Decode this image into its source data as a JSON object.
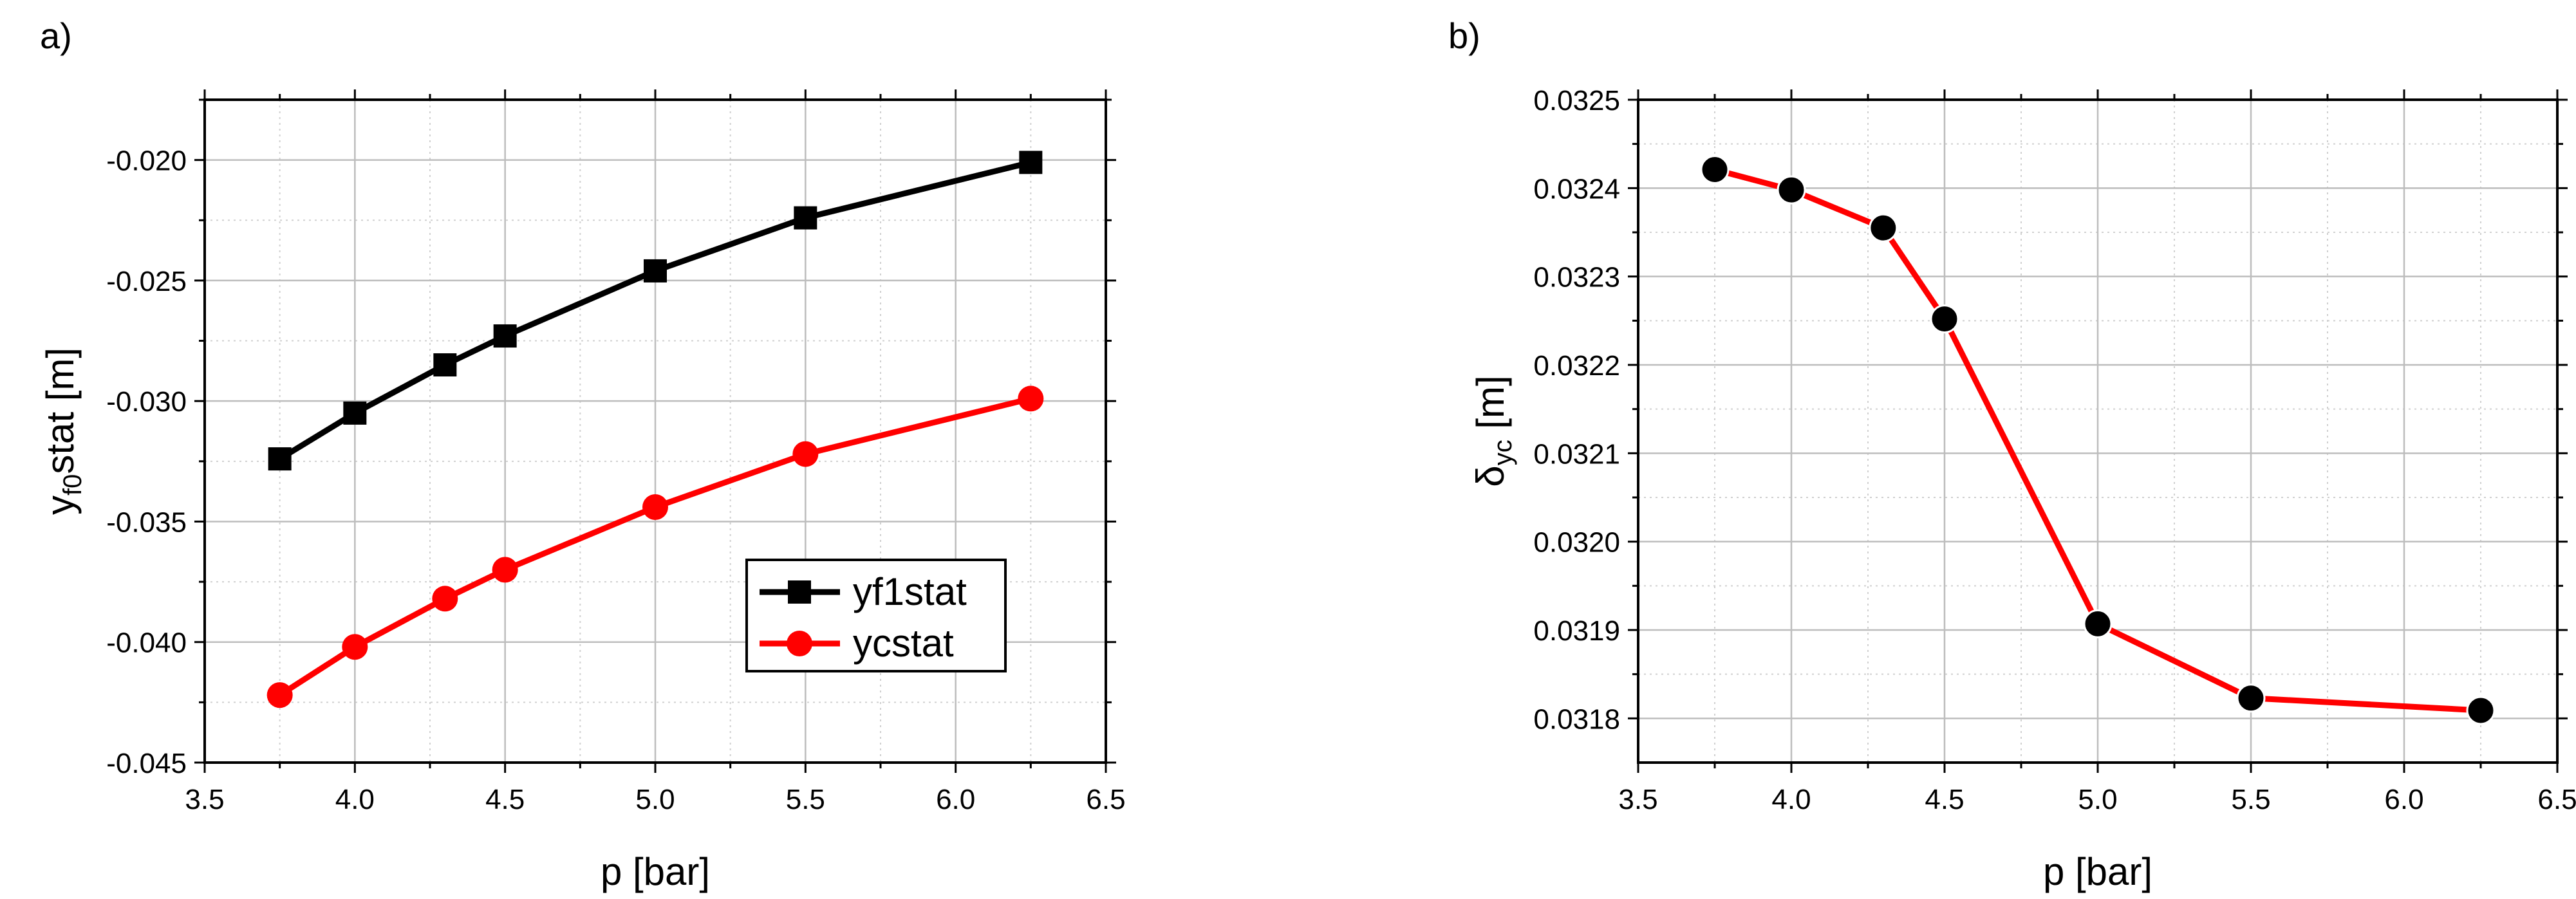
{
  "chart_data": [
    {
      "type": "line",
      "panel_label": "a)",
      "title": "",
      "xlabel": "p  [bar]",
      "ylabel": {
        "base": "y",
        "sub": "f0",
        "rest": "stat  [m]"
      },
      "xlim": [
        3.5,
        6.5
      ],
      "ylim": [
        -0.045,
        -0.0175
      ],
      "xticks": [
        3.5,
        4.0,
        4.5,
        5.0,
        5.5,
        6.0,
        6.5
      ],
      "xtick_labels": [
        "3.5",
        "4.0",
        "4.5",
        "5.0",
        "5.5",
        "6.0",
        "6.5"
      ],
      "yticks": [
        -0.045,
        -0.04,
        -0.035,
        -0.03,
        -0.025,
        -0.02
      ],
      "ytick_labels": [
        "-0.045",
        "-0.040",
        "-0.035",
        "-0.030",
        "-0.025",
        "-0.020"
      ],
      "grid": true,
      "legend_position": "lower-right",
      "x": [
        3.75,
        4.0,
        4.3,
        4.5,
        5.0,
        5.5,
        6.25
      ],
      "series": [
        {
          "name": "yf1stat",
          "color": "#000000",
          "marker": "square",
          "values": [
            -0.0324,
            -0.0305,
            -0.0285,
            -0.0273,
            -0.0246,
            -0.0224,
            -0.0201
          ]
        },
        {
          "name": "ycstat",
          "color": "#ff0000",
          "marker": "circle",
          "values": [
            -0.0422,
            -0.0402,
            -0.0382,
            -0.037,
            -0.0344,
            -0.0322,
            -0.0299
          ]
        }
      ]
    },
    {
      "type": "line",
      "panel_label": "b)",
      "title": "",
      "xlabel": "p  [bar]",
      "ylabel": {
        "base": "δ",
        "sub": "yc",
        "rest": "  [m]"
      },
      "xlim": [
        3.5,
        6.5
      ],
      "ylim": [
        0.03175,
        0.0325
      ],
      "xticks": [
        3.5,
        4.0,
        4.5,
        5.0,
        5.5,
        6.0,
        6.5
      ],
      "xtick_labels": [
        "3.5",
        "4.0",
        "4.5",
        "5.0",
        "5.5",
        "6.0",
        "6.5"
      ],
      "yticks": [
        0.0318,
        0.0319,
        0.032,
        0.0321,
        0.0322,
        0.0323,
        0.0324,
        0.0325
      ],
      "ytick_labels": [
        "0.0318",
        "0.0319",
        "0.0320",
        "0.0321",
        "0.0322",
        "0.0323",
        "0.0324",
        "0.0325"
      ],
      "grid": true,
      "x": [
        3.75,
        4.0,
        4.3,
        4.5,
        5.0,
        5.5,
        6.25
      ],
      "series": [
        {
          "name": "δyc",
          "color": "#ff0000",
          "marker_color": "#000000",
          "marker": "circle",
          "values": [
            0.032421,
            0.032398,
            0.032355,
            0.032252,
            0.031907,
            0.031823,
            0.031809
          ]
        }
      ]
    }
  ]
}
